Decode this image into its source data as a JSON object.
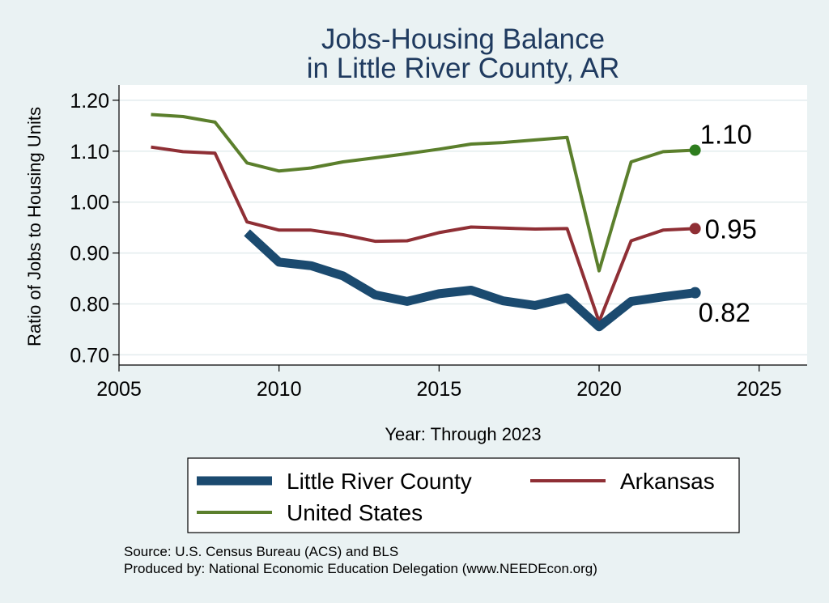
{
  "chart_data": {
    "type": "line",
    "title_lines": [
      "Jobs-Housing Balance",
      "in Little River County, AR"
    ],
    "xlabel": "Year: Through 2023",
    "ylabel": "Ratio of Jobs to Housing Units",
    "xlim": [
      2005,
      2026.5
    ],
    "ylim": [
      0.68,
      1.23
    ],
    "x_ticks": [
      2005,
      2010,
      2015,
      2020,
      2025
    ],
    "x_tick_labels": [
      "2005",
      "2010",
      "2015",
      "2020",
      "2025"
    ],
    "y_ticks": [
      0.7,
      0.8,
      0.9,
      1.0,
      1.1,
      1.2
    ],
    "y_tick_labels": [
      "0.70",
      "0.80",
      "0.90",
      "1.00",
      "1.10",
      "1.20"
    ],
    "grid": "horizontal",
    "legend_position": "bottom",
    "series": [
      {
        "name": "Little River County",
        "color": "#1b4a6f",
        "line_weight": "thick",
        "x": [
          2009,
          2010,
          2011,
          2012,
          2013,
          2014,
          2015,
          2016,
          2017,
          2018,
          2019,
          2020,
          2021,
          2022,
          2023
        ],
        "values": [
          0.94,
          0.882,
          0.875,
          0.855,
          0.818,
          0.805,
          0.82,
          0.827,
          0.806,
          0.797,
          0.812,
          0.755,
          0.805,
          0.814,
          0.822
        ],
        "end_label": "0.82"
      },
      {
        "name": "Arkansas",
        "color": "#8f2f35",
        "line_weight": "normal",
        "x": [
          2006,
          2007,
          2008,
          2009,
          2010,
          2011,
          2012,
          2013,
          2014,
          2015,
          2016,
          2017,
          2018,
          2019,
          2020,
          2021,
          2022,
          2023
        ],
        "values": [
          1.108,
          1.099,
          1.096,
          0.961,
          0.945,
          0.945,
          0.936,
          0.923,
          0.924,
          0.94,
          0.951,
          0.949,
          0.947,
          0.948,
          0.765,
          0.924,
          0.945,
          0.948
        ],
        "end_label": "0.95"
      },
      {
        "name": "United States",
        "color": "#5b7f2c",
        "line_weight": "normal",
        "x": [
          2006,
          2007,
          2008,
          2009,
          2010,
          2011,
          2012,
          2013,
          2014,
          2015,
          2016,
          2017,
          2018,
          2019,
          2020,
          2021,
          2022,
          2023
        ],
        "values": [
          1.172,
          1.168,
          1.157,
          1.077,
          1.061,
          1.067,
          1.079,
          1.087,
          1.095,
          1.104,
          1.114,
          1.117,
          1.122,
          1.127,
          0.865,
          1.079,
          1.099,
          1.102
        ],
        "end_label": "1.10",
        "end_marker_color": "#2e7d1e"
      }
    ]
  },
  "legend": {
    "entries": [
      {
        "label": "Little River County",
        "color": "#1b4a6f",
        "weight": "thick"
      },
      {
        "label": "Arkansas",
        "color": "#8f2f35",
        "weight": "normal"
      },
      {
        "label": "United States",
        "color": "#5b7f2c",
        "weight": "normal"
      }
    ]
  },
  "notes": {
    "source": "Source: U.S. Census Bureau (ACS) and BLS",
    "produced": "Produced by: National Economic Education Delegation (www.NEEDEcon.org)"
  }
}
